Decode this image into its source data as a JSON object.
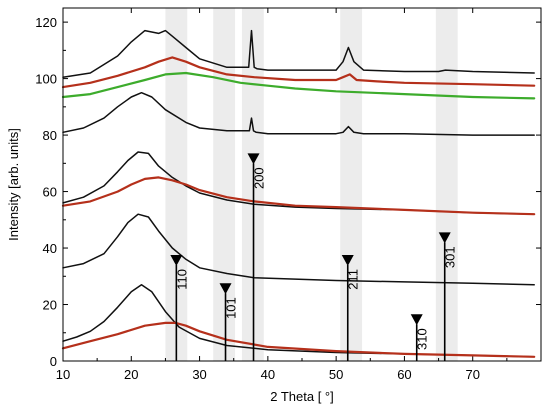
{
  "chart_data": {
    "type": "line",
    "xlabel": "2 Theta [ °]",
    "ylabel": "Intensity [arb. units]",
    "xlim": [
      10,
      80
    ],
    "ylim": [
      0,
      125
    ],
    "x_ticks": [
      10,
      20,
      30,
      40,
      50,
      60,
      70
    ],
    "y_ticks": [
      0,
      20,
      40,
      60,
      80,
      100,
      120
    ],
    "colors": {
      "black": "#111111",
      "red": "#b5301b",
      "green": "#3dac2c",
      "band": "#ececec",
      "olive": "#6f5a2c"
    },
    "bands": [
      {
        "from": 25.0,
        "to": 28.2
      },
      {
        "from": 32.0,
        "to": 35.2
      },
      {
        "from": 36.2,
        "to": 39.4
      },
      {
        "from": 50.6,
        "to": 53.8
      },
      {
        "from": 64.6,
        "to": 67.8
      }
    ],
    "reference_peaks": [
      {
        "label": "110",
        "x": 26.6,
        "height": 34
      },
      {
        "label": "101",
        "x": 33.8,
        "height": 24
      },
      {
        "label": "200",
        "x": 37.9,
        "height": 70
      },
      {
        "label": "211",
        "x": 51.7,
        "height": 34
      },
      {
        "label": "310",
        "x": 61.8,
        "height": 13
      },
      {
        "label": "301",
        "x": 65.9,
        "height": 42
      }
    ],
    "series": [
      {
        "color": "black",
        "x": [
          10,
          14,
          18,
          20,
          22,
          24,
          25,
          26,
          28,
          30,
          34,
          37.2,
          37.6,
          38.0,
          38.4,
          40,
          44,
          50,
          51,
          51.8,
          52.6,
          54,
          60,
          65,
          66,
          70,
          79
        ],
        "y": [
          100.5,
          102,
          108,
          113,
          117,
          116,
          117,
          115,
          111,
          107,
          104,
          104,
          117,
          104,
          103.5,
          103,
          103,
          103,
          106,
          111,
          106,
          103,
          102.5,
          102.5,
          103,
          102.5,
          102
        ]
      },
      {
        "color": "red",
        "x": [
          10,
          14,
          18,
          22,
          24,
          26,
          28,
          30,
          34,
          38,
          44,
          50,
          51,
          52,
          53,
          56,
          60,
          70,
          79
        ],
        "y": [
          97,
          98.5,
          101,
          104,
          106,
          107.5,
          106,
          104,
          101.5,
          100.5,
          99.5,
          99.5,
          100.5,
          101.5,
          99.5,
          99,
          98.5,
          98,
          97.5
        ]
      },
      {
        "color": "green",
        "x": [
          10,
          14,
          18,
          22,
          25,
          28,
          32,
          36,
          40,
          44,
          50,
          60,
          70,
          79
        ],
        "y": [
          93.5,
          94.5,
          97,
          99.5,
          101.5,
          102,
          100.5,
          98.5,
          97.5,
          96.5,
          95.5,
          94.5,
          93.5,
          93
        ]
      },
      {
        "color": "black",
        "x": [
          10,
          13,
          16,
          18,
          20,
          21.5,
          23,
          25,
          28,
          30,
          34,
          37.3,
          37.6,
          37.9,
          38.3,
          40,
          44,
          50,
          51,
          51.8,
          52.6,
          54,
          60,
          70,
          79
        ],
        "y": [
          81,
          82.5,
          86,
          90,
          93.5,
          95,
          93.5,
          89,
          84.5,
          82.5,
          81.5,
          81.5,
          86,
          81.5,
          81,
          80.5,
          80.5,
          80.5,
          81,
          83,
          81,
          80.5,
          80.5,
          80,
          80
        ]
      },
      {
        "color": "black",
        "x": [
          10,
          13,
          16,
          18,
          19.5,
          21,
          22.5,
          24,
          26,
          28,
          30,
          34,
          38,
          44,
          50,
          60,
          70,
          79
        ],
        "y": [
          56,
          58,
          62,
          67,
          71,
          74,
          73.5,
          69,
          65,
          62,
          59.5,
          57,
          55.5,
          54.5,
          54,
          53.5,
          52.5,
          52
        ]
      },
      {
        "color": "red",
        "x": [
          10,
          14,
          18,
          20,
          22,
          24,
          26,
          28,
          30,
          34,
          38,
          44,
          50,
          60,
          70,
          79
        ],
        "y": [
          55,
          56.5,
          60,
          62.5,
          64.5,
          65,
          64,
          62.5,
          60.5,
          58,
          56.5,
          55,
          54.5,
          53.5,
          52.5,
          52
        ]
      },
      {
        "color": "black",
        "x": [
          10,
          13,
          16,
          18,
          19.5,
          21,
          22.5,
          24,
          26,
          28,
          30,
          34,
          38,
          44,
          50,
          60,
          70,
          79
        ],
        "y": [
          33,
          34.5,
          38,
          44,
          49,
          52,
          51,
          46,
          40,
          36,
          33,
          31,
          29.5,
          29,
          28.5,
          28,
          27.5,
          27
        ]
      },
      {
        "color": "black",
        "x": [
          10,
          12,
          14,
          16,
          18,
          20,
          21.5,
          23,
          25,
          27,
          30,
          34,
          40,
          50,
          60,
          70,
          79
        ],
        "y": [
          7,
          8.5,
          10.5,
          14,
          19,
          24.5,
          27,
          24.5,
          17.5,
          12,
          8,
          5.5,
          4,
          3,
          2.5,
          2,
          1.5
        ]
      },
      {
        "color": "red",
        "x": [
          10,
          14,
          18,
          22,
          25,
          26.5,
          28,
          30,
          34,
          40,
          50,
          60,
          70,
          79
        ],
        "y": [
          4.5,
          7,
          9.5,
          12.5,
          13.5,
          13.5,
          12.5,
          10.5,
          7.5,
          5,
          3.5,
          2.5,
          2,
          1.5
        ]
      }
    ]
  }
}
